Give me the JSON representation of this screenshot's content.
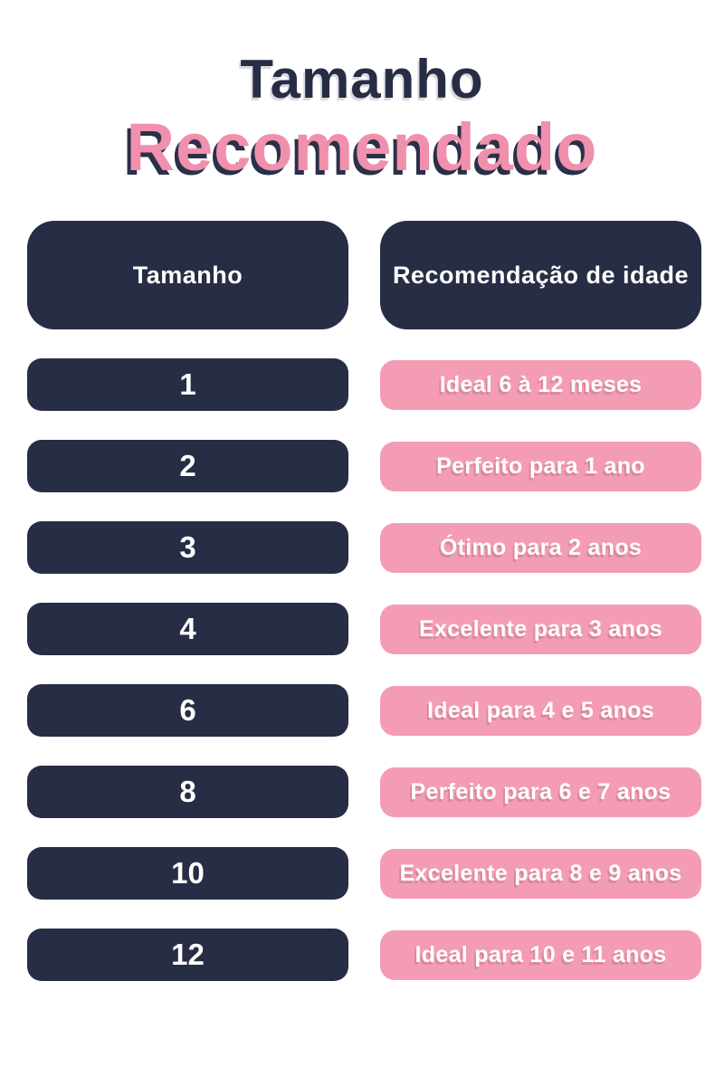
{
  "title": {
    "line1": "Tamanho",
    "line2": "Recomendado"
  },
  "chart_data": {
    "type": "table",
    "title": "Tamanho Recomendado",
    "columns": [
      "Tamanho",
      "Recomendação de idade"
    ],
    "rows": [
      [
        "1",
        "Ideal 6 à 12 meses"
      ],
      [
        "2",
        "Perfeito para 1 ano"
      ],
      [
        "3",
        "Ótimo para 2 anos"
      ],
      [
        "4",
        "Excelente para 3 anos"
      ],
      [
        "6",
        "Ideal para 4 e 5 anos"
      ],
      [
        "8",
        "Perfeito para 6 e 7 anos"
      ],
      [
        "10",
        "Excelente para 8 e 9 anos"
      ],
      [
        "12",
        "Ideal para 10 e 11 anos"
      ]
    ]
  },
  "colors": {
    "navy": "#262d44",
    "pink": "#f49cb4",
    "title_pink": "#f090ac",
    "text_white": "#ffffff",
    "background": "#ffffff"
  }
}
